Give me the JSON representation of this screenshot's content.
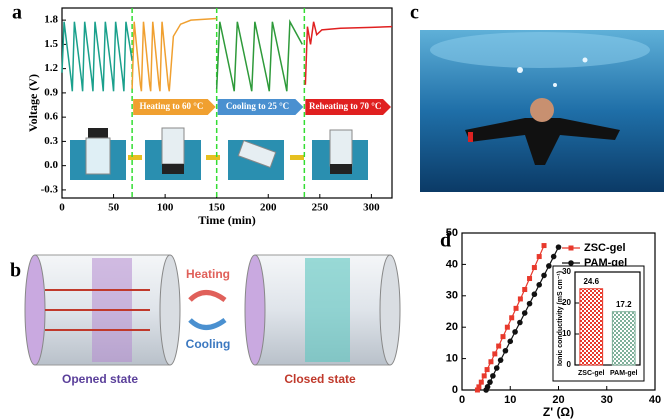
{
  "panel_labels": [
    "a",
    "b",
    "c",
    "d"
  ],
  "panel_b": {
    "heating": "Heating",
    "cooling": "Cooling",
    "opened": "Opened state",
    "closed": "Closed state"
  },
  "chart_data": [
    {
      "type": "line",
      "xlabel": "Time (min)",
      "ylabel": "Voltage (V)",
      "xlim": [
        0,
        320
      ],
      "xticks": [
        0,
        50,
        100,
        150,
        200,
        250,
        300
      ],
      "ylim": [
        -0.4,
        1.95
      ],
      "yticks": [
        -0.3,
        {
          "value": 0,
          "label": "0.0"
        },
        0.3,
        0.6,
        0.9,
        1.2,
        1.5,
        1.8
      ],
      "vlines": [
        68,
        150,
        235
      ],
      "annotations": [
        "Heating to 60 °C",
        "Cooling to 25 °C",
        "Reheating to 70 °C"
      ],
      "series": [
        {
          "color": "#1aa08c",
          "x": [
            0,
            2,
            9,
            10,
            12,
            19,
            20,
            22,
            29,
            30,
            32,
            39,
            40,
            42,
            49,
            50,
            52,
            59,
            60,
            62,
            68
          ],
          "values": [
            1.15,
            1.78,
            1.05,
            0.92,
            1.78,
            1.05,
            0.92,
            1.78,
            1.05,
            0.92,
            1.78,
            1.05,
            0.92,
            1.78,
            1.05,
            0.92,
            1.78,
            1.05,
            0.92,
            1.78,
            1.3
          ]
        },
        {
          "color": "#f0a030",
          "x": [
            68,
            70,
            76,
            77,
            79,
            85,
            86,
            88,
            94,
            95,
            97,
            103,
            104,
            108,
            115,
            125,
            150
          ],
          "values": [
            0.95,
            1.78,
            1.0,
            0.92,
            1.78,
            1.0,
            0.92,
            1.78,
            1.0,
            0.92,
            1.78,
            1.0,
            0.92,
            1.6,
            1.75,
            1.8,
            1.82
          ]
        },
        {
          "color": "#2e9a3a",
          "x": [
            150,
            153,
            165,
            167,
            170,
            182,
            184,
            187,
            199,
            201,
            204,
            216,
            218,
            221,
            233
          ],
          "values": [
            0.95,
            1.78,
            1.05,
            0.92,
            1.78,
            1.05,
            0.92,
            1.78,
            1.05,
            0.92,
            1.78,
            1.05,
            0.92,
            1.78,
            1.5
          ]
        },
        {
          "color": "#e02020",
          "x": [
            236,
            238,
            241,
            244,
            247,
            252,
            270,
            300,
            320
          ],
          "values": [
            1.0,
            1.72,
            1.5,
            1.78,
            1.62,
            1.68,
            1.7,
            1.71,
            1.72
          ]
        }
      ]
    },
    {
      "type": "scatter",
      "xlabel": "Z' (Ω)",
      "xlim": [
        0,
        40
      ],
      "xticks": [
        0,
        10,
        20,
        30,
        40
      ],
      "ylim": [
        0,
        50
      ],
      "yticks": [
        0,
        10,
        20,
        30,
        40,
        50
      ],
      "legend": "upper left",
      "series": [
        {
          "name": "ZSC-gel",
          "color": "#e8392c",
          "marker": "square",
          "x": [
            3.2,
            3.5,
            4,
            4.6,
            5.2,
            6,
            6.8,
            7.6,
            8.5,
            9.4,
            10.3,
            11.2,
            12.1,
            13,
            14,
            15,
            16,
            17
          ],
          "values": [
            0,
            1,
            2.5,
            4.5,
            6.5,
            9,
            11.5,
            14,
            17,
            20,
            23,
            26,
            29,
            32,
            35.5,
            39,
            42.5,
            46
          ]
        },
        {
          "name": "PAM-gel",
          "color": "#111111",
          "marker": "circle",
          "x": [
            5,
            5.3,
            5.8,
            6.4,
            7.2,
            8,
            9,
            10,
            11,
            12,
            13,
            14,
            15,
            16,
            17,
            18,
            19,
            20
          ],
          "values": [
            0,
            1,
            2.5,
            4.5,
            7,
            9.5,
            12.5,
            15.5,
            18.5,
            21.5,
            24.5,
            27.5,
            30.5,
            33.5,
            36.5,
            39.5,
            42.5,
            45.5
          ]
        }
      ]
    },
    {
      "type": "bar",
      "ylabel": "Ionic conductivity (mS cm⁻¹)",
      "categories": [
        "ZSC-gel",
        "PAM-gel"
      ],
      "values": [
        24.6,
        17.2
      ],
      "colors": [
        "#e8392c",
        "#7fb09a"
      ],
      "ylim": [
        0,
        30
      ],
      "yticks": [
        0,
        10,
        20,
        30
      ]
    }
  ]
}
